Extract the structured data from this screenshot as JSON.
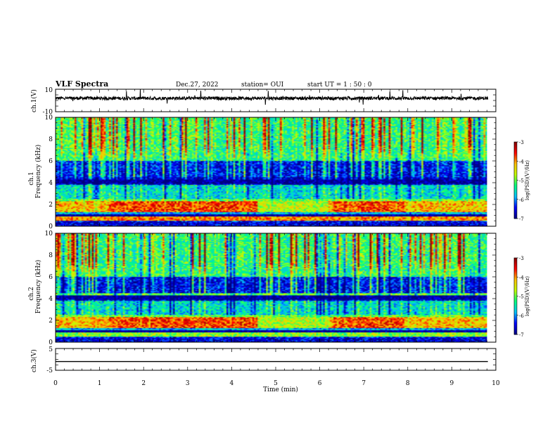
{
  "header": {
    "title": "VLF Spectra",
    "date": "Dec.27, 2022",
    "station": "station= OUI",
    "start": "start  UT =   1 : 50 : 0"
  },
  "chart_data": [
    {
      "type": "line",
      "name": "ch1-waveform",
      "ylabel": "ch.1(V)",
      "ylim": [
        -10,
        10
      ],
      "y_tick_labels": [
        "10",
        "-10"
      ],
      "xlim": [
        0,
        10
      ],
      "approx_level": 2,
      "approx_amplitude": 1.5
    },
    {
      "type": "heatmap",
      "name": "ch1-spectrogram",
      "ylabel_line1": "ch.1",
      "ylabel_line2": "Frequency (kHz)",
      "xlim": [
        0,
        9.8
      ],
      "ylim": [
        0,
        10
      ],
      "y_tick_labels": [
        "0",
        "2",
        "4",
        "6",
        "8",
        "10"
      ],
      "colorbar": {
        "label": "log(PSD)(V²/Hz)",
        "range": [
          -7,
          -3
        ],
        "tick_labels": [
          "-3",
          "-4",
          "-5",
          "-6",
          "-7"
        ]
      }
    },
    {
      "type": "heatmap",
      "name": "ch2-spectrogram",
      "ylabel_line1": "ch.2",
      "ylabel_line2": "Frequency (kHz)",
      "xlim": [
        0,
        9.8
      ],
      "ylim": [
        0,
        10
      ],
      "y_tick_labels": [
        "0",
        "2",
        "4",
        "6",
        "8",
        "10"
      ],
      "colorbar": {
        "label": "log(PSD)(V²/Hz)",
        "range": [
          -7,
          -3
        ],
        "tick_labels": [
          "-3",
          "-4",
          "-5",
          "-6",
          "-7"
        ]
      }
    },
    {
      "type": "line",
      "name": "ch3-waveform",
      "ylabel": "ch.3(V)",
      "ylim": [
        -5,
        5
      ],
      "y_tick_labels": [
        "5",
        "-5"
      ],
      "xlim": [
        0,
        10
      ],
      "approx_level": -1
    }
  ],
  "x_axis": {
    "label": "Time (min)",
    "tick_labels": [
      "0",
      "1",
      "2",
      "3",
      "4",
      "5",
      "6",
      "7",
      "8",
      "9",
      "10"
    ]
  },
  "colors": {
    "colormap": [
      "#00007f",
      "#0000ff",
      "#00bfff",
      "#00ff7f",
      "#bfff00",
      "#ffbf00",
      "#ff0000",
      "#7f0000"
    ]
  }
}
